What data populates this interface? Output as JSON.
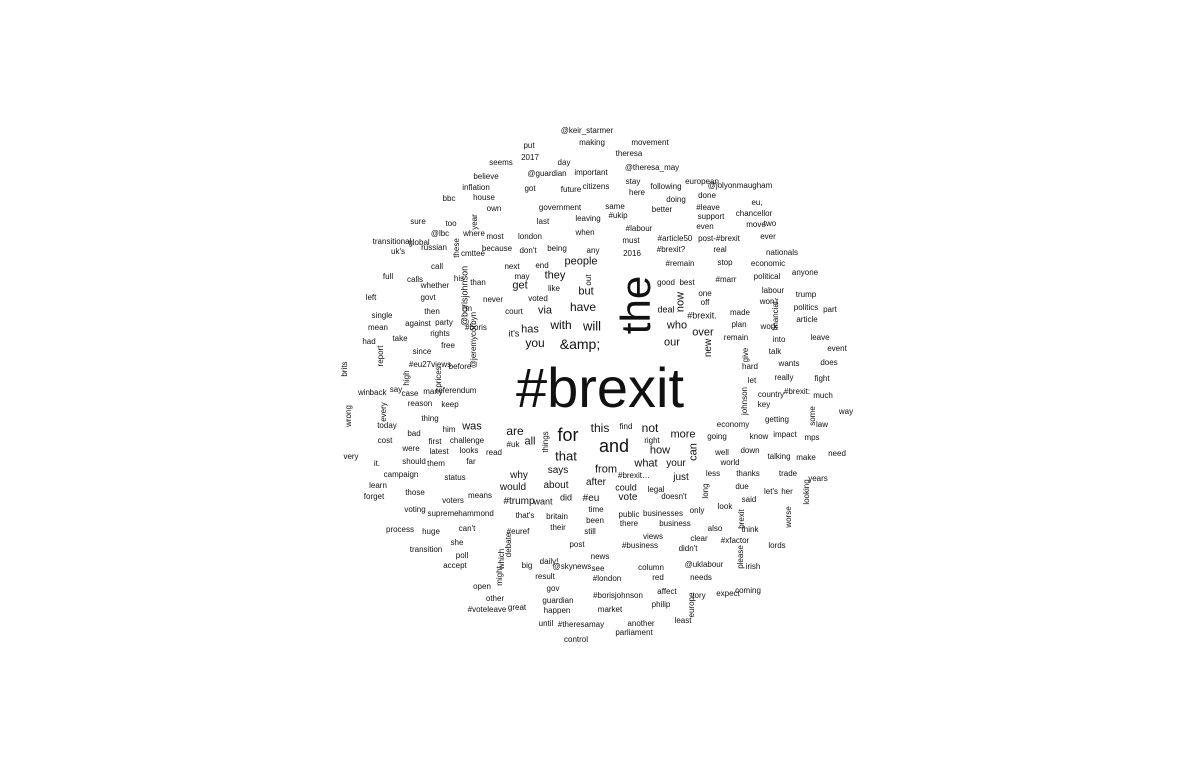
{
  "text_color": "#111111",
  "background_color": "#ffffff",
  "words": [
    {
      "text": "#brexit",
      "weight": 56
    },
    {
      "text": "the",
      "weight": 42,
      "vertical": true
    },
    {
      "text": "for",
      "weight": 18
    },
    {
      "text": "and",
      "weight": 18
    },
    {
      "text": "&amp;",
      "weight": 14
    },
    {
      "text": "will",
      "weight": 13
    },
    {
      "text": "have",
      "weight": 12
    },
    {
      "text": "that",
      "weight": 13
    },
    {
      "text": "this",
      "weight": 12
    },
    {
      "text": "are",
      "weight": 12
    },
    {
      "text": "not",
      "weight": 12
    },
    {
      "text": "you",
      "weight": 12
    },
    {
      "text": "with",
      "weight": 12
    },
    {
      "text": "people",
      "weight": 11
    },
    {
      "text": "from",
      "weight": 11
    },
    {
      "text": "our",
      "weight": 11
    },
    {
      "text": "who",
      "weight": 11
    },
    {
      "text": "over",
      "weight": 11
    },
    {
      "text": "more",
      "weight": 11
    },
    {
      "text": "how",
      "weight": 11
    },
    {
      "text": "what",
      "weight": 11
    },
    {
      "text": "all",
      "weight": 11
    },
    {
      "text": "was",
      "weight": 11
    },
    {
      "text": "via",
      "weight": 11
    },
    {
      "text": "has",
      "weight": 11
    },
    {
      "text": "but",
      "weight": 11
    },
    {
      "text": "they",
      "weight": 11
    },
    {
      "text": "get",
      "weight": 11
    },
    {
      "text": "says",
      "weight": 10
    },
    {
      "text": "about",
      "weight": 10
    },
    {
      "text": "why",
      "weight": 10
    },
    {
      "text": "would",
      "weight": 10
    },
    {
      "text": "your",
      "weight": 10
    },
    {
      "text": "just",
      "weight": 10
    },
    {
      "text": "could",
      "weight": 9
    },
    {
      "text": "after",
      "weight": 10
    },
    {
      "text": "#eu",
      "weight": 10
    },
    {
      "text": "vote",
      "weight": 10
    },
    {
      "text": "#trump",
      "weight": 10
    },
    {
      "text": "want",
      "weight": 9
    },
    {
      "text": "did",
      "weight": 9
    },
    {
      "text": "it's",
      "weight": 9
    },
    {
      "text": "can",
      "weight": 11,
      "vertical": true
    },
    {
      "text": "now",
      "weight": 11,
      "vertical": true
    },
    {
      "text": "new",
      "weight": 10,
      "vertical": true
    },
    {
      "text": "#brexit.",
      "weight": 9
    },
    {
      "text": "deal",
      "weight": 9
    },
    {
      "text": "off",
      "weight": 8
    },
    {
      "text": "one",
      "weight": 8
    },
    {
      "text": "best",
      "weight": 8
    },
    {
      "text": "good",
      "weight": 8
    },
    {
      "text": "out",
      "weight": 8,
      "vertical": true
    },
    {
      "text": "like",
      "weight": 8
    },
    {
      "text": "voted",
      "weight": 8
    },
    {
      "text": "court",
      "weight": 8
    },
    {
      "text": "may",
      "weight": 8
    },
    {
      "text": "next",
      "weight": 8
    },
    {
      "text": "end",
      "weight": 8
    },
    {
      "text": "don't",
      "weight": 8
    },
    {
      "text": "being",
      "weight": 8
    },
    {
      "text": "any",
      "weight": 8
    },
    {
      "text": "must",
      "weight": 8
    },
    {
      "text": "2016",
      "weight": 8
    },
    {
      "text": "when",
      "weight": 8
    },
    {
      "text": "london",
      "weight": 8
    },
    {
      "text": "because",
      "weight": 8
    },
    {
      "text": "most",
      "weight": 8
    },
    {
      "text": "last",
      "weight": 8
    },
    {
      "text": "government",
      "weight": 8
    },
    {
      "text": "leaving",
      "weight": 8
    },
    {
      "text": "#ukip",
      "weight": 8
    },
    {
      "text": "same",
      "weight": 8
    },
    {
      "text": "#labour",
      "weight": 8
    },
    {
      "text": "#article50",
      "weight": 8
    },
    {
      "text": "#brexit?",
      "weight": 8
    },
    {
      "text": "#remain",
      "weight": 8
    },
    {
      "text": "even",
      "weight": 8
    },
    {
      "text": "post-#brexit",
      "weight": 8
    },
    {
      "text": "real",
      "weight": 8
    },
    {
      "text": "stop",
      "weight": 8
    },
    {
      "text": "support",
      "weight": 8
    },
    {
      "text": "#leave",
      "weight": 8
    },
    {
      "text": "done",
      "weight": 8
    },
    {
      "text": "doing",
      "weight": 8
    },
    {
      "text": "better",
      "weight": 8
    },
    {
      "text": "european",
      "weight": 8
    },
    {
      "text": "following",
      "weight": 8
    },
    {
      "text": "stay",
      "weight": 8
    },
    {
      "text": "here",
      "weight": 8
    },
    {
      "text": "citizens",
      "weight": 8
    },
    {
      "text": "future",
      "weight": 8
    },
    {
      "text": "got",
      "weight": 8
    },
    {
      "text": "@guardian",
      "weight": 8
    },
    {
      "text": "important",
      "weight": 8
    },
    {
      "text": "day",
      "weight": 8
    },
    {
      "text": "2017",
      "weight": 8
    },
    {
      "text": "put",
      "weight": 8
    },
    {
      "text": "seems",
      "weight": 8
    },
    {
      "text": "believe",
      "weight": 8
    },
    {
      "text": "inflation",
      "weight": 8
    },
    {
      "text": "house",
      "weight": 8
    },
    {
      "text": "own",
      "weight": 8
    },
    {
      "text": "@keir_starmer",
      "weight": 8
    },
    {
      "text": "making",
      "weight": 8
    },
    {
      "text": "movement",
      "weight": 8
    },
    {
      "text": "theresa",
      "weight": 8
    },
    {
      "text": "@theresa_may",
      "weight": 8
    },
    {
      "text": "@jolyonmaugham",
      "weight": 8
    },
    {
      "text": "eu,",
      "weight": 8
    },
    {
      "text": "chancellor",
      "weight": 8
    },
    {
      "text": "move",
      "weight": 8
    },
    {
      "text": "two",
      "weight": 8
    },
    {
      "text": "ever",
      "weight": 8
    },
    {
      "text": "nationals",
      "weight": 8
    },
    {
      "text": "economic",
      "weight": 8
    },
    {
      "text": "political",
      "weight": 8
    },
    {
      "text": "anyone",
      "weight": 8
    },
    {
      "text": "#marr",
      "weight": 8
    },
    {
      "text": "labour",
      "weight": 8
    },
    {
      "text": "won't",
      "weight": 8
    },
    {
      "text": "trump",
      "weight": 8
    },
    {
      "text": "politics",
      "weight": 8
    },
    {
      "text": "article",
      "weight": 8
    },
    {
      "text": "part",
      "weight": 8
    },
    {
      "text": "made",
      "weight": 8
    },
    {
      "text": "financial",
      "weight": 8,
      "vertical": true
    },
    {
      "text": "plan",
      "weight": 8
    },
    {
      "text": "work",
      "weight": 8
    },
    {
      "text": "remain",
      "weight": 8
    },
    {
      "text": "into",
      "weight": 8
    },
    {
      "text": "leave",
      "weight": 8
    },
    {
      "text": "event",
      "weight": 8
    },
    {
      "text": "give",
      "weight": 8,
      "vertical": true
    },
    {
      "text": "talk",
      "weight": 8
    },
    {
      "text": "hard",
      "weight": 8
    },
    {
      "text": "wants",
      "weight": 8
    },
    {
      "text": "does",
      "weight": 8
    },
    {
      "text": "really",
      "weight": 8
    },
    {
      "text": "fight",
      "weight": 8
    },
    {
      "text": "let",
      "weight": 8
    },
    {
      "text": "country",
      "weight": 8
    },
    {
      "text": "#brexit:",
      "weight": 8
    },
    {
      "text": "much",
      "weight": 8
    },
    {
      "text": "johnson",
      "weight": 8,
      "vertical": true
    },
    {
      "text": "key",
      "weight": 8
    },
    {
      "text": "some",
      "weight": 8,
      "vertical": true
    },
    {
      "text": "way",
      "weight": 8
    },
    {
      "text": "law",
      "weight": 8
    },
    {
      "text": "getting",
      "weight": 8
    },
    {
      "text": "economy",
      "weight": 8
    },
    {
      "text": "impact",
      "weight": 8
    },
    {
      "text": "know",
      "weight": 8
    },
    {
      "text": "mps",
      "weight": 8
    },
    {
      "text": "going",
      "weight": 8
    },
    {
      "text": "down",
      "weight": 8
    },
    {
      "text": "need",
      "weight": 8
    },
    {
      "text": "well",
      "weight": 8
    },
    {
      "text": "talking",
      "weight": 8
    },
    {
      "text": "make",
      "weight": 8
    },
    {
      "text": "world",
      "weight": 8
    },
    {
      "text": "less",
      "weight": 8
    },
    {
      "text": "thanks",
      "weight": 8
    },
    {
      "text": "trade",
      "weight": 8
    },
    {
      "text": "years",
      "weight": 8
    },
    {
      "text": "due",
      "weight": 8
    },
    {
      "text": "let's",
      "weight": 8
    },
    {
      "text": "her",
      "weight": 8
    },
    {
      "text": "looking",
      "weight": 8,
      "vertical": true
    },
    {
      "text": "long",
      "weight": 8,
      "vertical": true
    },
    {
      "text": "said",
      "weight": 8
    },
    {
      "text": "doesn't",
      "weight": 8
    },
    {
      "text": "legal",
      "weight": 8
    },
    {
      "text": "look",
      "weight": 8
    },
    {
      "text": "only",
      "weight": 8
    },
    {
      "text": "brexit",
      "weight": 8,
      "vertical": true
    },
    {
      "text": "worse",
      "weight": 8,
      "vertical": true
    },
    {
      "text": "think",
      "weight": 8
    },
    {
      "text": "also",
      "weight": 8
    },
    {
      "text": "#xfactor",
      "weight": 8
    },
    {
      "text": "lords",
      "weight": 8
    },
    {
      "text": "clear",
      "weight": 8
    },
    {
      "text": "didn't",
      "weight": 8
    },
    {
      "text": "please",
      "weight": 8,
      "vertical": true
    },
    {
      "text": "irish",
      "weight": 8
    },
    {
      "text": "@uklabour",
      "weight": 8
    },
    {
      "text": "needs",
      "weight": 8
    },
    {
      "text": "expect",
      "weight": 8
    },
    {
      "text": "coming",
      "weight": 8
    },
    {
      "text": "tory",
      "weight": 8
    },
    {
      "text": "europe",
      "weight": 8,
      "vertical": true
    },
    {
      "text": "least",
      "weight": 8
    },
    {
      "text": "affect",
      "weight": 8
    },
    {
      "text": "philip",
      "weight": 8
    },
    {
      "text": "column",
      "weight": 8
    },
    {
      "text": "red",
      "weight": 8
    },
    {
      "text": "views",
      "weight": 8
    },
    {
      "text": "#business",
      "weight": 8
    },
    {
      "text": "businesses",
      "weight": 8
    },
    {
      "text": "business",
      "weight": 8
    },
    {
      "text": "public",
      "weight": 8
    },
    {
      "text": "there",
      "weight": 8
    },
    {
      "text": "#brexit…",
      "weight": 8
    },
    {
      "text": "time",
      "weight": 8
    },
    {
      "text": "been",
      "weight": 8
    },
    {
      "text": "still",
      "weight": 8
    },
    {
      "text": "britain",
      "weight": 8
    },
    {
      "text": "their",
      "weight": 8
    },
    {
      "text": "news",
      "weight": 8
    },
    {
      "text": "post",
      "weight": 8
    },
    {
      "text": "see",
      "weight": 8
    },
    {
      "text": "#london",
      "weight": 8
    },
    {
      "text": "#borisjohnson",
      "weight": 8
    },
    {
      "text": "market",
      "weight": 8
    },
    {
      "text": "another",
      "weight": 8
    },
    {
      "text": "parliament",
      "weight": 8
    },
    {
      "text": "#theresamay",
      "weight": 8
    },
    {
      "text": "control",
      "weight": 8
    },
    {
      "text": "until",
      "weight": 8
    },
    {
      "text": "guardian",
      "weight": 8
    },
    {
      "text": "happen",
      "weight": 8
    },
    {
      "text": "gov",
      "weight": 8
    },
    {
      "text": "result",
      "weight": 8
    },
    {
      "text": "daily!",
      "weight": 8
    },
    {
      "text": "@skynews",
      "weight": 8
    },
    {
      "text": "big",
      "weight": 8
    },
    {
      "text": "great",
      "weight": 8
    },
    {
      "text": "might",
      "weight": 8,
      "vertical": true
    },
    {
      "text": "which",
      "weight": 8,
      "vertical": true
    },
    {
      "text": "debate",
      "weight": 8,
      "vertical": true
    },
    {
      "text": "#euref",
      "weight": 8
    },
    {
      "text": "that's",
      "weight": 8
    },
    {
      "text": "hammond",
      "weight": 8
    },
    {
      "text": "means",
      "weight": 8
    },
    {
      "text": "voters",
      "weight": 8
    },
    {
      "text": "supreme",
      "weight": 8
    },
    {
      "text": "can't",
      "weight": 8
    },
    {
      "text": "she",
      "weight": 8
    },
    {
      "text": "poll",
      "weight": 8
    },
    {
      "text": "accept",
      "weight": 8
    },
    {
      "text": "open",
      "weight": 8
    },
    {
      "text": "other",
      "weight": 8
    },
    {
      "text": "#voteleave",
      "weight": 8
    },
    {
      "text": "transition",
      "weight": 8
    },
    {
      "text": "huge",
      "weight": 8
    },
    {
      "text": "process",
      "weight": 8
    },
    {
      "text": "voting",
      "weight": 8
    },
    {
      "text": "those",
      "weight": 8
    },
    {
      "text": "forget",
      "weight": 8
    },
    {
      "text": "learn",
      "weight": 8
    },
    {
      "text": "campaign",
      "weight": 8
    },
    {
      "text": "status",
      "weight": 8
    },
    {
      "text": "far",
      "weight": 8
    },
    {
      "text": "looks",
      "weight": 8
    },
    {
      "text": "challenge",
      "weight": 8
    },
    {
      "text": "latest",
      "weight": 8
    },
    {
      "text": "them",
      "weight": 8
    },
    {
      "text": "should",
      "weight": 8
    },
    {
      "text": "were",
      "weight": 8
    },
    {
      "text": "first",
      "weight": 8
    },
    {
      "text": "bad",
      "weight": 8
    },
    {
      "text": "cost",
      "weight": 8
    },
    {
      "text": "it.",
      "weight": 8
    },
    {
      "text": "very",
      "weight": 8
    },
    {
      "text": "today",
      "weight": 8
    },
    {
      "text": "every",
      "weight": 8,
      "vertical": true
    },
    {
      "text": "wrong",
      "weight": 8,
      "vertical": true
    },
    {
      "text": "him",
      "weight": 8
    },
    {
      "text": "thing",
      "weight": 8
    },
    {
      "text": "reason",
      "weight": 8
    },
    {
      "text": "keep",
      "weight": 8
    },
    {
      "text": "referendum",
      "weight": 8
    },
    {
      "text": "many",
      "weight": 8
    },
    {
      "text": "case",
      "weight": 8
    },
    {
      "text": "say",
      "weight": 8
    },
    {
      "text": "back",
      "weight": 8
    },
    {
      "text": "win",
      "weight": 8
    },
    {
      "text": "brits",
      "weight": 8,
      "vertical": true
    },
    {
      "text": "high",
      "weight": 8,
      "vertical": true
    },
    {
      "text": "prices",
      "weight": 8,
      "vertical": true
    },
    {
      "text": "#eu27views",
      "weight": 8
    },
    {
      "text": "before",
      "weight": 8
    },
    {
      "text": "since",
      "weight": 8
    },
    {
      "text": "free",
      "weight": 8
    },
    {
      "text": "report",
      "weight": 8,
      "vertical": true
    },
    {
      "text": "had",
      "weight": 8
    },
    {
      "text": "take",
      "weight": 8
    },
    {
      "text": "rights",
      "weight": 8
    },
    {
      "text": "party",
      "weight": 8
    },
    {
      "text": "@jeremycorbyn",
      "weight": 8,
      "vertical": true
    },
    {
      "text": "#boris",
      "weight": 8
    },
    {
      "text": "never",
      "weight": 8
    },
    {
      "text": "than",
      "weight": 8
    },
    {
      "text": "his",
      "weight": 8
    },
    {
      "text": "@borisjohnson",
      "weight": 9,
      "vertical": true
    },
    {
      "text": "i'm",
      "weight": 8
    },
    {
      "text": "then",
      "weight": 8
    },
    {
      "text": "against",
      "weight": 8
    },
    {
      "text": "mean",
      "weight": 8
    },
    {
      "text": "single",
      "weight": 8
    },
    {
      "text": "left",
      "weight": 8
    },
    {
      "text": "govt",
      "weight": 8
    },
    {
      "text": "calls",
      "weight": 8
    },
    {
      "text": "whether",
      "weight": 8
    },
    {
      "text": "call",
      "weight": 8
    },
    {
      "text": "full",
      "weight": 8
    },
    {
      "text": "uk's",
      "weight": 8
    },
    {
      "text": "transitional",
      "weight": 8
    },
    {
      "text": "global",
      "weight": 8
    },
    {
      "text": "@lbc",
      "weight": 8
    },
    {
      "text": "russian",
      "weight": 8
    },
    {
      "text": "these",
      "weight": 8,
      "vertical": true
    },
    {
      "text": "cmttee",
      "weight": 8
    },
    {
      "text": "sure",
      "weight": 8
    },
    {
      "text": "too",
      "weight": 8
    },
    {
      "text": "year",
      "weight": 8,
      "vertical": true
    },
    {
      "text": "where",
      "weight": 8
    },
    {
      "text": "bbc",
      "weight": 8
    },
    {
      "text": "find",
      "weight": 8
    },
    {
      "text": "right",
      "weight": 8
    },
    {
      "text": "things",
      "weight": 8,
      "vertical": true
    },
    {
      "text": "#uk",
      "weight": 8
    },
    {
      "text": "read",
      "weight": 8
    },
    {
      "text": "british",
      "weight": 8,
      "vertical": true
    },
    {
      "text": "its",
      "weight": 8
    },
    {
      "text": "#brexit,",
      "weight": 8,
      "vertical": true
    }
  ]
}
